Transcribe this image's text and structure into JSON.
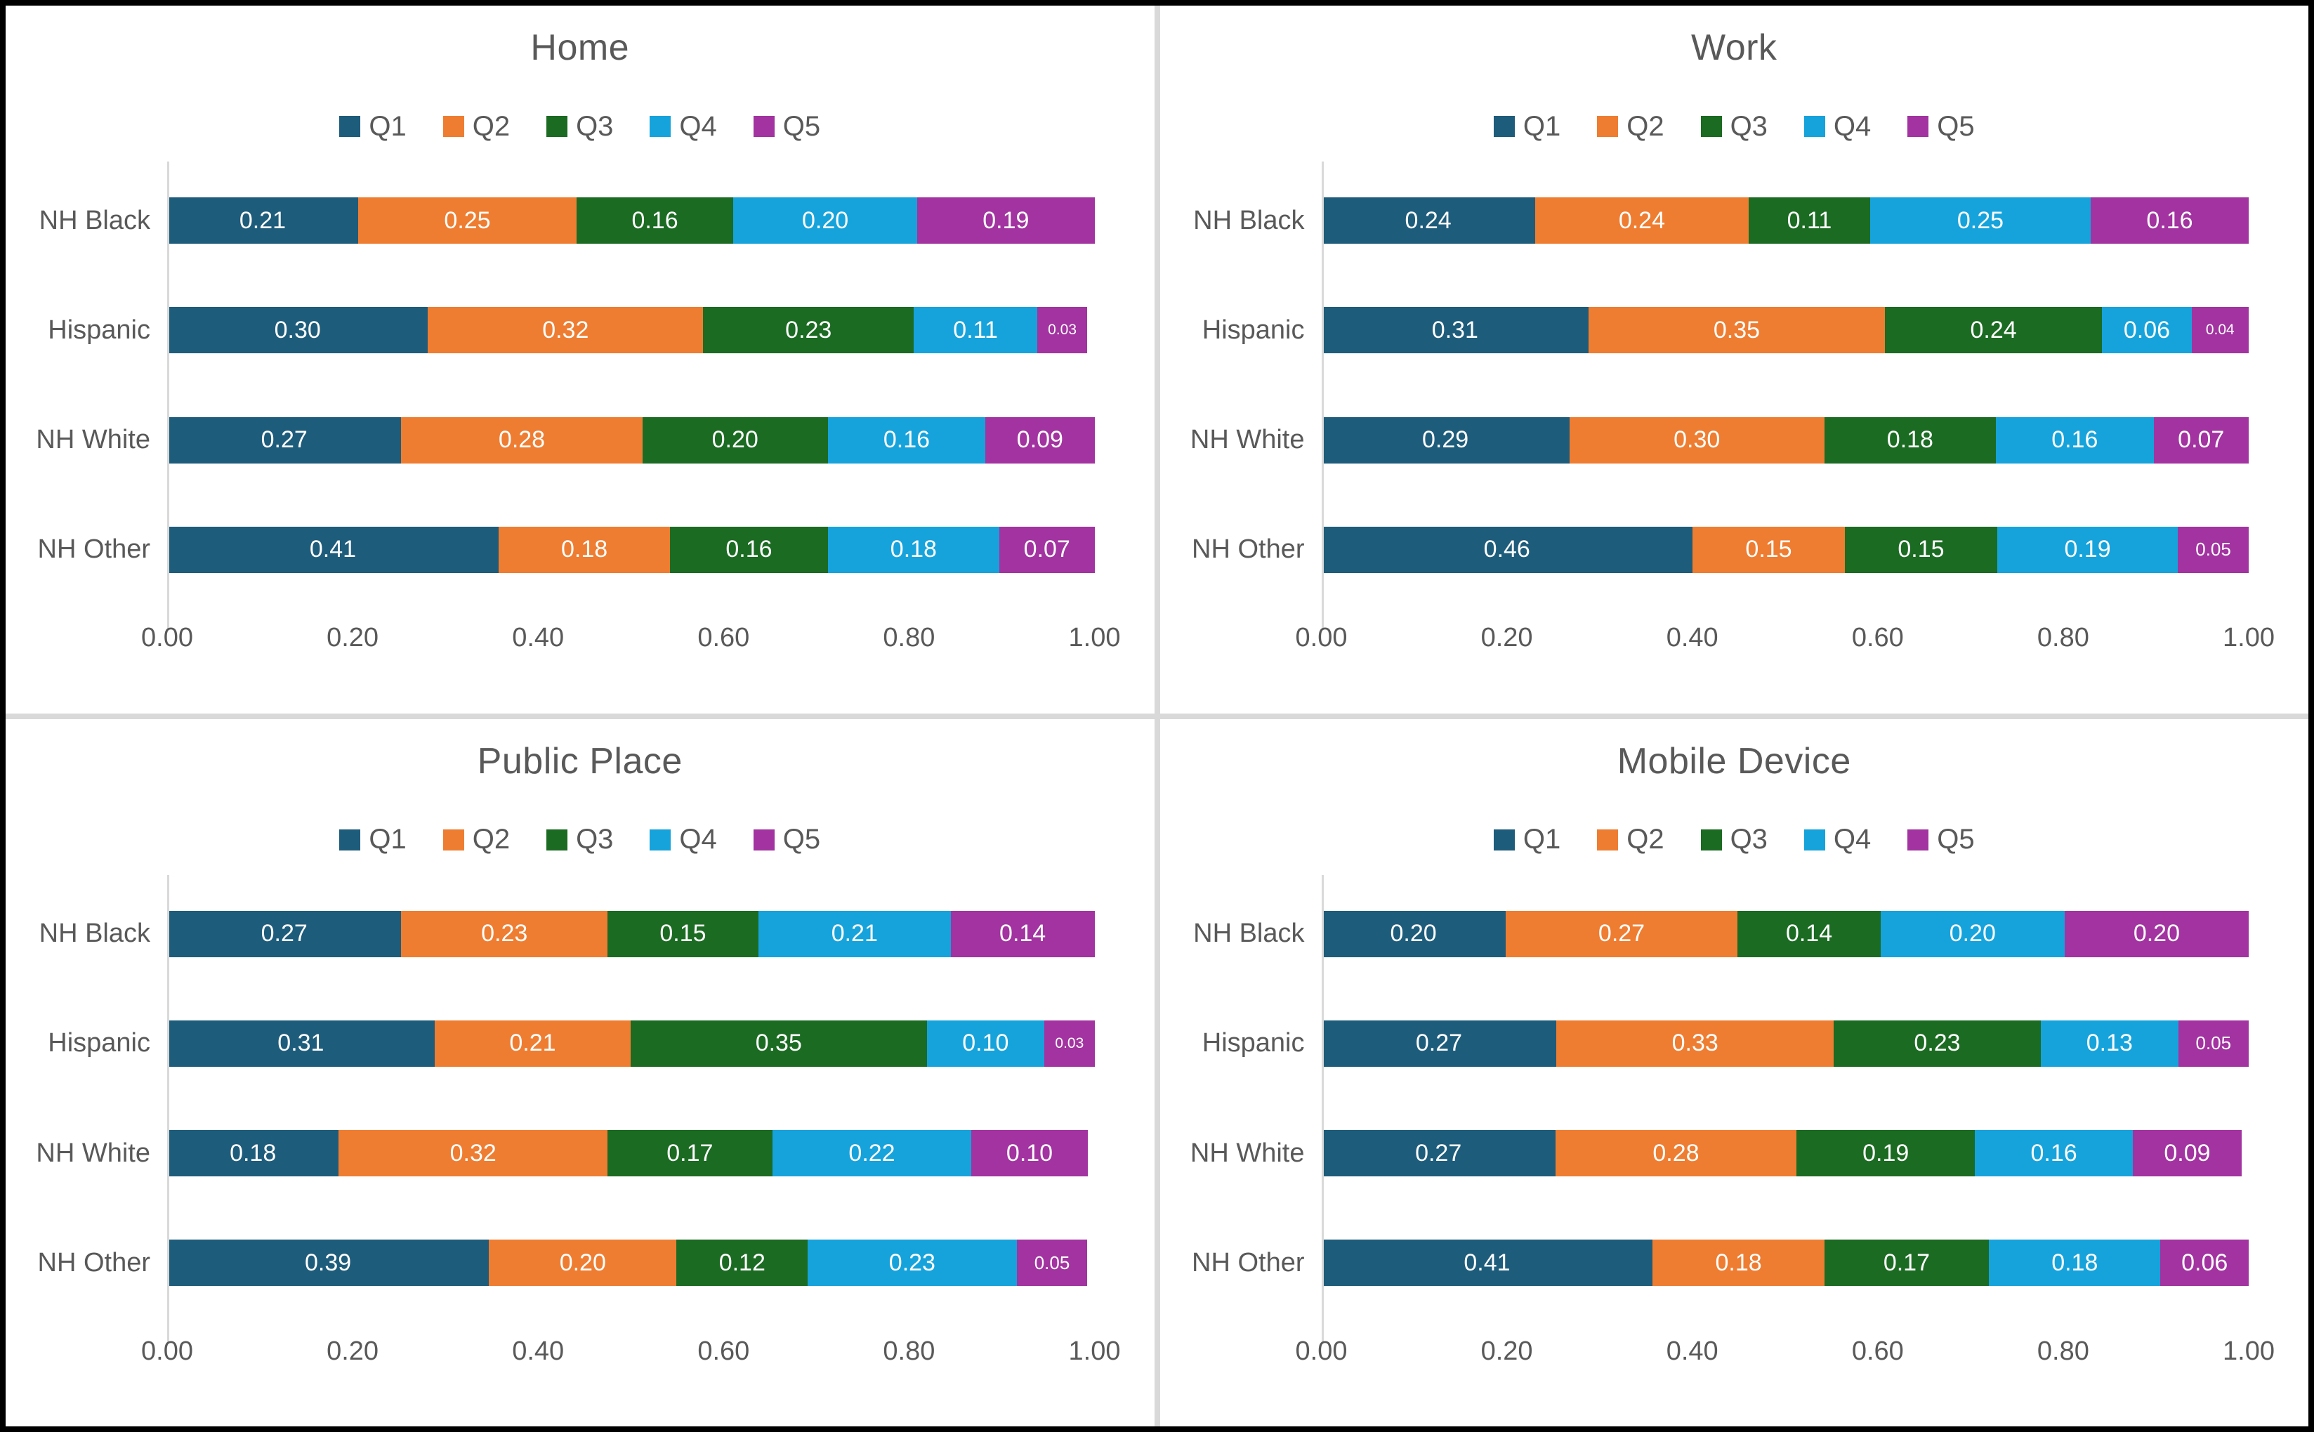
{
  "page": {
    "background": "#FFFFFF",
    "outer_border_color": "#000000",
    "divider_color": "#D9D9D9",
    "title_color": "#595959",
    "axis_text_color": "#595959",
    "value_label_color": "#FFFFFF"
  },
  "palette": {
    "Q1": "#1E5C7B",
    "Q2": "#EE7D31",
    "Q3": "#1B6B22",
    "Q4": "#16A3DC",
    "Q5": "#A233A0"
  },
  "chart_data": [
    {
      "type": "bar",
      "stacked": true,
      "orientation": "horizontal",
      "title": "Home",
      "legend_position": "top",
      "legend_entries": [
        "Q1",
        "Q2",
        "Q3",
        "Q4",
        "Q5"
      ],
      "categories": [
        "NH Black",
        "Hispanic",
        "NH White",
        "NH Other"
      ],
      "series": [
        {
          "name": "Q1",
          "values": [
            0.21,
            0.3,
            0.27,
            0.41
          ]
        },
        {
          "name": "Q2",
          "values": [
            0.25,
            0.32,
            0.28,
            0.18
          ]
        },
        {
          "name": "Q3",
          "values": [
            0.16,
            0.23,
            0.2,
            0.16
          ]
        },
        {
          "name": "Q4",
          "values": [
            0.2,
            0.11,
            0.16,
            0.18
          ]
        },
        {
          "name": "Q5",
          "values": [
            0.19,
            0.03,
            0.09,
            0.07
          ]
        }
      ],
      "xlabel": "",
      "ylabel": "",
      "xlim": [
        0,
        1
      ],
      "x_ticks": [
        "0.00",
        "0.20",
        "0.40",
        "0.60",
        "0.80",
        "1.00"
      ],
      "grid": false
    },
    {
      "type": "bar",
      "stacked": true,
      "orientation": "horizontal",
      "title": "Work",
      "legend_position": "top",
      "legend_entries": [
        "Q1",
        "Q2",
        "Q3",
        "Q4",
        "Q5"
      ],
      "categories": [
        "NH Black",
        "Hispanic",
        "NH White",
        "NH Other"
      ],
      "series": [
        {
          "name": "Q1",
          "values": [
            0.24,
            0.31,
            0.29,
            0.46
          ]
        },
        {
          "name": "Q2",
          "values": [
            0.24,
            0.35,
            0.3,
            0.15
          ]
        },
        {
          "name": "Q3",
          "values": [
            0.11,
            0.24,
            0.18,
            0.15
          ]
        },
        {
          "name": "Q4",
          "values": [
            0.25,
            0.06,
            0.16,
            0.19
          ]
        },
        {
          "name": "Q5",
          "values": [
            0.16,
            0.04,
            0.07,
            0.05
          ]
        }
      ],
      "xlabel": "",
      "ylabel": "",
      "xlim": [
        0,
        1
      ],
      "x_ticks": [
        "0.00",
        "0.20",
        "0.40",
        "0.60",
        "0.80",
        "1.00"
      ],
      "grid": false
    },
    {
      "type": "bar",
      "stacked": true,
      "orientation": "horizontal",
      "title": "Public Place",
      "legend_position": "top",
      "legend_entries": [
        "Q1",
        "Q2",
        "Q3",
        "Q4",
        "Q5"
      ],
      "categories": [
        "NH Black",
        "Hispanic",
        "NH White",
        "NH Other"
      ],
      "series": [
        {
          "name": "Q1",
          "values": [
            0.27,
            0.31,
            0.18,
            0.39
          ]
        },
        {
          "name": "Q2",
          "values": [
            0.23,
            0.21,
            0.32,
            0.2
          ]
        },
        {
          "name": "Q3",
          "values": [
            0.15,
            0.35,
            0.17,
            0.12
          ]
        },
        {
          "name": "Q4",
          "values": [
            0.21,
            0.1,
            0.22,
            0.23
          ]
        },
        {
          "name": "Q5",
          "values": [
            0.14,
            0.03,
            0.1,
            0.05
          ]
        }
      ],
      "xlabel": "",
      "ylabel": "",
      "xlim": [
        0,
        1
      ],
      "x_ticks": [
        "0.00",
        "0.20",
        "0.40",
        "0.60",
        "0.80",
        "1.00"
      ],
      "grid": false
    },
    {
      "type": "bar",
      "stacked": true,
      "orientation": "horizontal",
      "title": "Mobile Device",
      "legend_position": "top",
      "legend_entries": [
        "Q1",
        "Q2",
        "Q3",
        "Q4",
        "Q5"
      ],
      "categories": [
        "NH Black",
        "Hispanic",
        "NH White",
        "NH Other"
      ],
      "series": [
        {
          "name": "Q1",
          "values": [
            0.2,
            0.27,
            0.27,
            0.41
          ]
        },
        {
          "name": "Q2",
          "values": [
            0.27,
            0.33,
            0.28,
            0.18
          ]
        },
        {
          "name": "Q3",
          "values": [
            0.14,
            0.23,
            0.19,
            0.17
          ]
        },
        {
          "name": "Q4",
          "values": [
            0.2,
            0.13,
            0.16,
            0.18
          ]
        },
        {
          "name": "Q5",
          "values": [
            0.2,
            0.05,
            0.09,
            0.06
          ]
        }
      ],
      "xlabel": "",
      "ylabel": "",
      "xlim": [
        0,
        1
      ],
      "x_ticks": [
        "0.00",
        "0.20",
        "0.40",
        "0.60",
        "0.80",
        "1.00"
      ],
      "grid": false
    }
  ]
}
